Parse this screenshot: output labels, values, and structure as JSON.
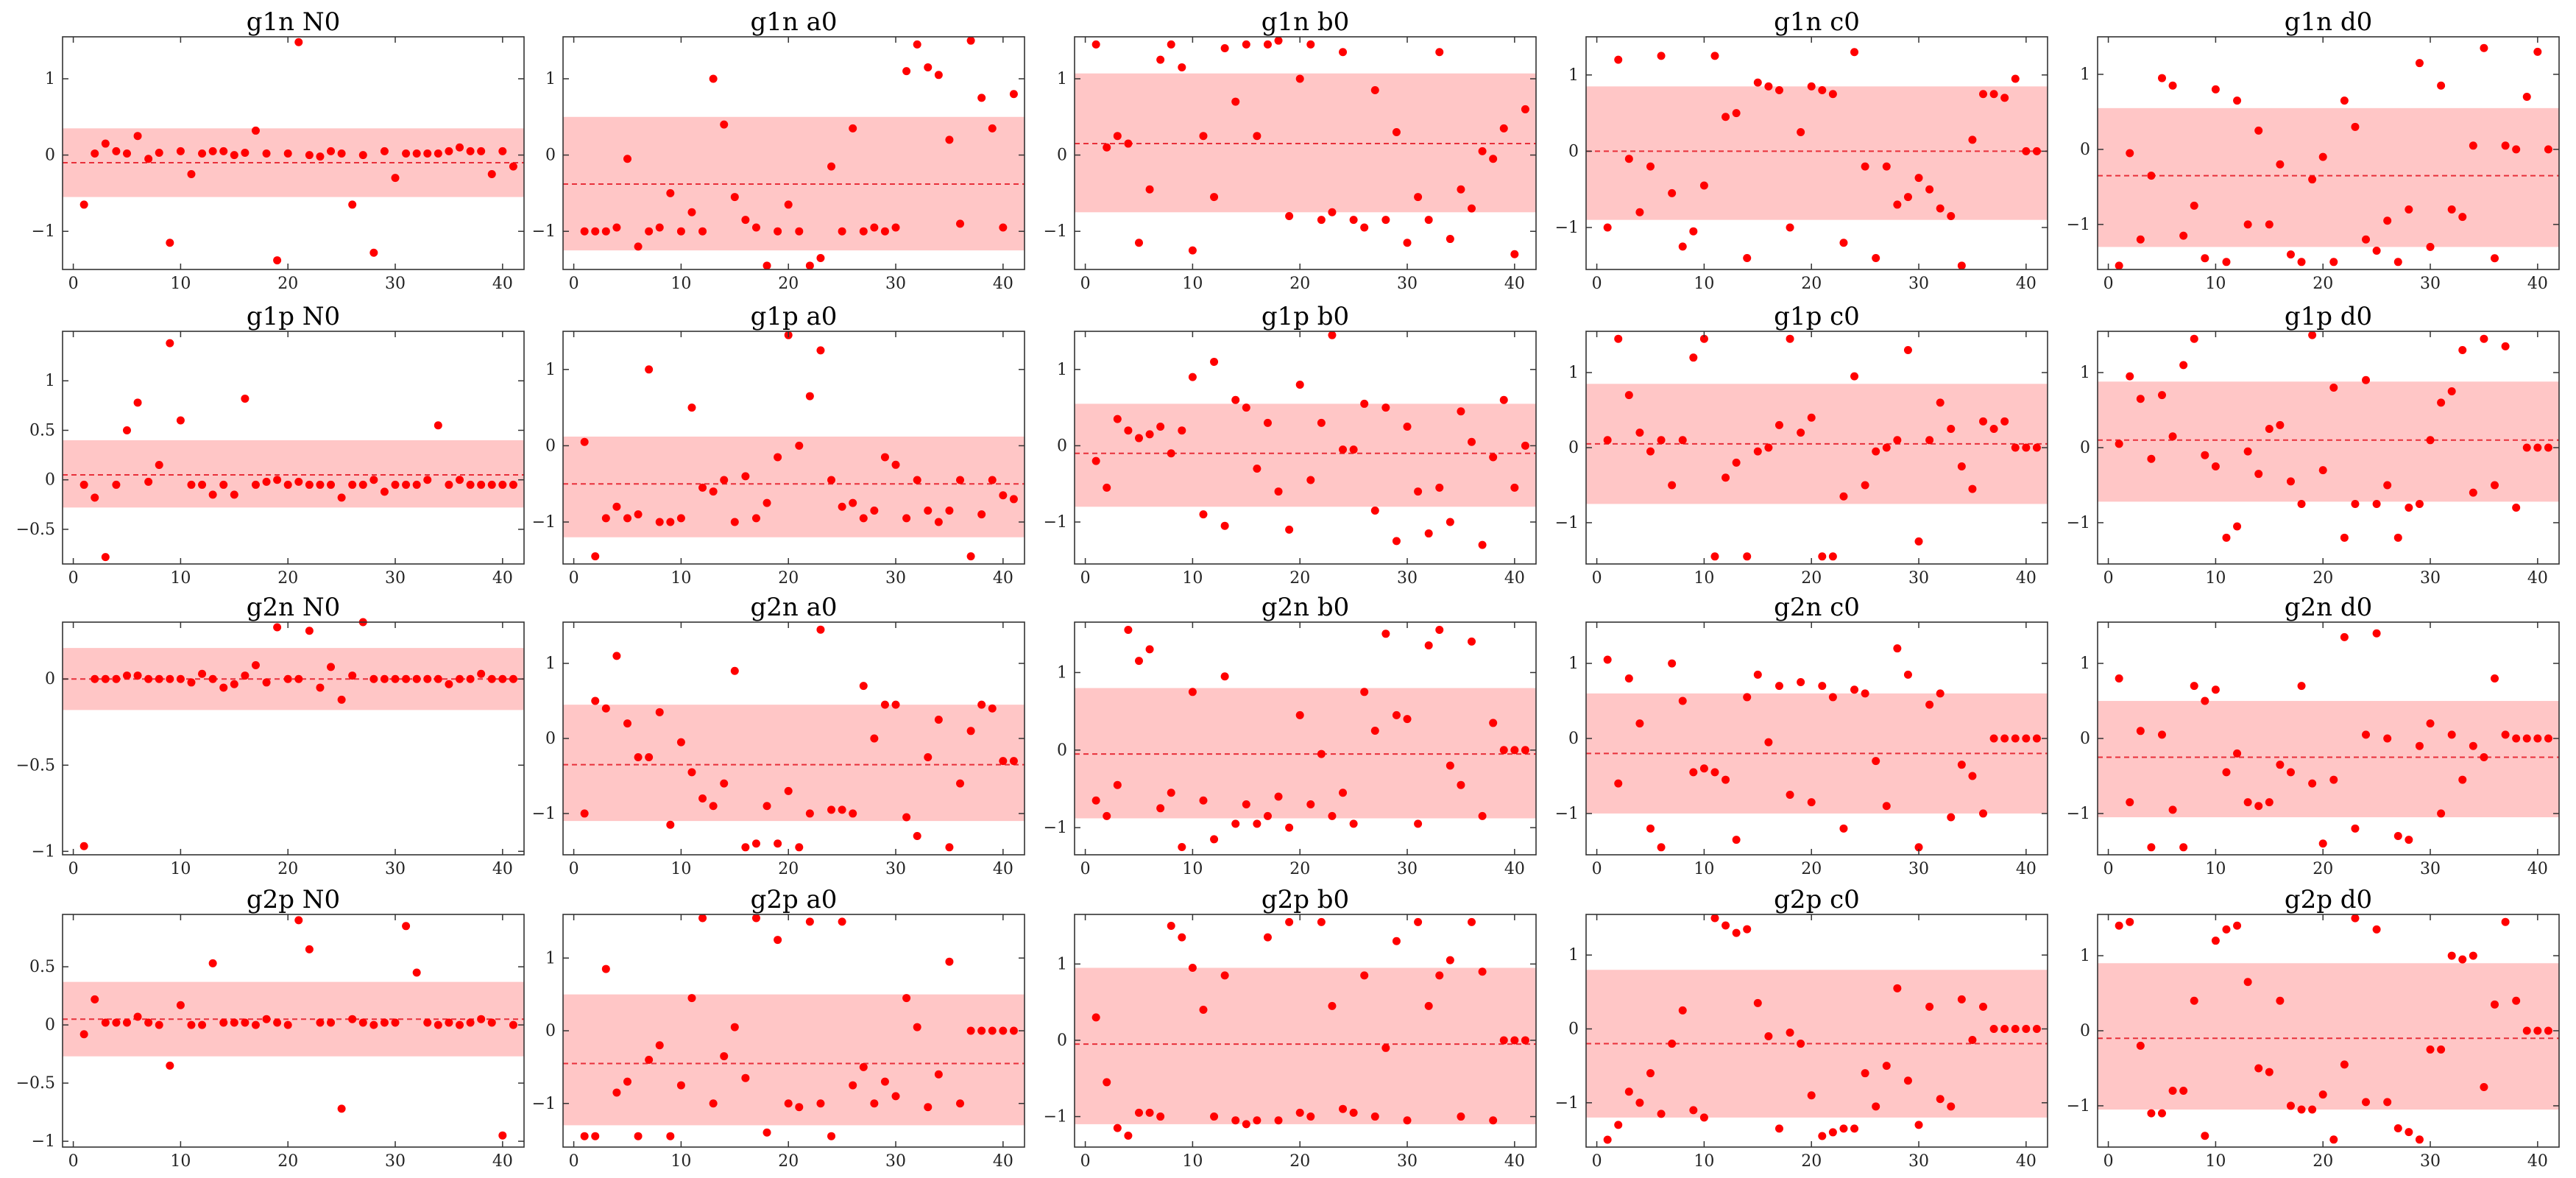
{
  "colors": {
    "point": "#ff0000",
    "band": "#ffb3b3",
    "mean_line": "#e8303a",
    "axes": "#333333"
  },
  "chart_data": [
    {
      "type": "scatter",
      "title": "g1n N0",
      "xlim": [
        -1,
        42
      ],
      "ylim": [
        -1.5,
        1.55
      ],
      "yticks": [
        -1,
        0,
        1
      ],
      "xticks": [
        0,
        10,
        20,
        30,
        40
      ],
      "mean": -0.1,
      "band": [
        -0.55,
        0.35
      ],
      "y": [
        -0.65,
        0.02,
        0.15,
        0.05,
        0.02,
        0.25,
        -0.05,
        0.03,
        -1.15,
        0.05,
        -0.25,
        0.02,
        0.05,
        0.05,
        0.0,
        0.03,
        0.32,
        0.02,
        -1.38,
        0.02,
        1.48,
        0.0,
        -0.02,
        0.05,
        0.02,
        -0.65,
        0.0,
        -1.28,
        0.05,
        -0.3,
        0.02,
        0.02,
        0.02,
        0.02,
        0.05,
        0.1,
        0.05,
        0.05,
        -0.25,
        0.05,
        -0.15
      ]
    },
    {
      "type": "scatter",
      "title": "g1n a0",
      "xlim": [
        -1,
        42
      ],
      "ylim": [
        -1.5,
        1.55
      ],
      "yticks": [
        -1,
        0,
        1
      ],
      "xticks": [
        0,
        10,
        20,
        30,
        40
      ],
      "mean": -0.38,
      "band": [
        -1.25,
        0.5
      ],
      "y": [
        -1.0,
        -1.0,
        -1.0,
        -0.95,
        -0.05,
        -1.2,
        -1.0,
        -0.95,
        -0.5,
        -1.0,
        -0.75,
        -1.0,
        1.0,
        0.4,
        -0.55,
        -0.85,
        -0.95,
        -1.45,
        -1.0,
        -0.65,
        -1.0,
        -1.45,
        -1.35,
        -0.15,
        -1.0,
        0.35,
        -1.0,
        -0.95,
        -1.0,
        -0.95,
        1.1,
        1.45,
        1.15,
        1.05,
        0.2,
        -0.9,
        1.5,
        0.75,
        0.35,
        -0.95,
        0.8
      ]
    },
    {
      "type": "scatter",
      "title": "g1n b0",
      "xlim": [
        -1,
        42
      ],
      "ylim": [
        -1.5,
        1.55
      ],
      "yticks": [
        -1,
        0,
        1
      ],
      "xticks": [
        0,
        10,
        20,
        30,
        40
      ],
      "mean": 0.15,
      "band": [
        -0.75,
        1.07
      ],
      "y": [
        1.45,
        0.1,
        0.25,
        0.15,
        -1.15,
        -0.45,
        1.25,
        1.45,
        1.15,
        -1.25,
        0.25,
        -0.55,
        1.4,
        0.7,
        1.45,
        0.25,
        1.45,
        1.5,
        -0.8,
        1.0,
        1.45,
        -0.85,
        -0.75,
        1.35,
        -0.85,
        -0.95,
        0.85,
        -0.85,
        0.3,
        -1.15,
        -0.55,
        -0.85,
        1.35,
        -1.1,
        -0.45,
        -0.7,
        0.05,
        -0.05,
        0.35,
        -1.3,
        0.6
      ]
    },
    {
      "type": "scatter",
      "title": "g1n c0",
      "xlim": [
        -1,
        42
      ],
      "ylim": [
        -1.55,
        1.5
      ],
      "yticks": [
        -1,
        0,
        1
      ],
      "xticks": [
        0,
        10,
        20,
        30,
        40
      ],
      "mean": 0.0,
      "band": [
        -0.9,
        0.85
      ],
      "y": [
        -1.0,
        1.2,
        -0.1,
        -0.8,
        -0.2,
        1.25,
        -0.55,
        -1.25,
        -1.05,
        -0.45,
        1.25,
        0.45,
        0.5,
        -1.4,
        0.9,
        0.85,
        0.8,
        -1.0,
        0.25,
        0.85,
        0.8,
        0.75,
        -1.2,
        1.3,
        -0.2,
        -1.4,
        -0.2,
        -0.7,
        -0.6,
        -0.35,
        -0.5,
        -0.75,
        -0.85,
        -1.5,
        0.15,
        0.75,
        0.75,
        0.7,
        0.95,
        0.0,
        0.0
      ]
    },
    {
      "type": "scatter",
      "title": "g1n d0",
      "xlim": [
        -1,
        42
      ],
      "ylim": [
        -1.6,
        1.5
      ],
      "yticks": [
        -1,
        0,
        1
      ],
      "xticks": [
        0,
        10,
        20,
        30,
        40
      ],
      "mean": -0.35,
      "band": [
        -1.3,
        0.55
      ],
      "y": [
        -1.55,
        -0.05,
        -1.2,
        -0.35,
        0.95,
        0.85,
        -1.15,
        -0.75,
        -1.45,
        0.8,
        -1.5,
        0.65,
        -1.0,
        0.25,
        -1.0,
        -0.2,
        -1.4,
        -1.5,
        -0.4,
        -0.1,
        -1.5,
        0.65,
        0.3,
        -1.2,
        -1.35,
        -0.95,
        -1.5,
        -0.8,
        1.15,
        -1.3,
        0.85,
        -0.8,
        -0.9,
        0.05,
        1.35,
        -1.45,
        0.05,
        0.0,
        0.7,
        1.3,
        0.0
      ]
    },
    {
      "type": "scatter",
      "title": "g1p N0",
      "xlim": [
        -1,
        42
      ],
      "ylim": [
        -0.85,
        1.5
      ],
      "yticks": [
        -0.5,
        0.0,
        0.5,
        1.0
      ],
      "xticks": [
        0,
        10,
        20,
        30,
        40
      ],
      "mean": 0.05,
      "band": [
        -0.28,
        0.4
      ],
      "y": [
        -0.05,
        -0.18,
        -0.78,
        -0.05,
        0.5,
        0.78,
        -0.02,
        0.15,
        1.38,
        0.6,
        -0.05,
        -0.05,
        -0.15,
        -0.05,
        -0.15,
        0.82,
        -0.05,
        -0.02,
        0.0,
        -0.05,
        -0.02,
        -0.05,
        -0.05,
        -0.05,
        -0.18,
        -0.05,
        -0.05,
        0.0,
        -0.12,
        -0.05,
        -0.05,
        -0.05,
        0.0,
        0.55,
        -0.05,
        0.0,
        -0.05,
        -0.05,
        -0.05,
        -0.05,
        -0.05
      ]
    },
    {
      "type": "scatter",
      "title": "g1p a0",
      "xlim": [
        -1,
        42
      ],
      "ylim": [
        -1.55,
        1.5
      ],
      "yticks": [
        -1,
        0,
        1
      ],
      "xticks": [
        0,
        10,
        20,
        30,
        40
      ],
      "mean": -0.5,
      "band": [
        -1.2,
        0.12
      ],
      "y": [
        0.05,
        -1.45,
        -0.95,
        -0.8,
        -0.95,
        -0.9,
        1.0,
        -1.0,
        -1.0,
        -0.95,
        0.5,
        -0.55,
        -0.6,
        -0.45,
        -1.0,
        -0.4,
        -0.95,
        -0.75,
        -0.15,
        1.45,
        0.0,
        0.65,
        1.25,
        -0.45,
        -0.8,
        -0.75,
        -0.95,
        -0.85,
        -0.15,
        -0.25,
        -0.95,
        -0.45,
        -0.85,
        -1.0,
        -0.85,
        -0.45,
        -1.45,
        -0.9,
        -0.45,
        -0.65,
        -0.7
      ]
    },
    {
      "type": "scatter",
      "title": "g1p b0",
      "xlim": [
        -1,
        42
      ],
      "ylim": [
        -1.55,
        1.5
      ],
      "yticks": [
        -1,
        0,
        1
      ],
      "xticks": [
        0,
        10,
        20,
        30,
        40
      ],
      "mean": -0.1,
      "band": [
        -0.8,
        0.55
      ],
      "y": [
        -0.2,
        -0.55,
        0.35,
        0.2,
        0.1,
        0.15,
        0.25,
        -0.1,
        0.2,
        0.9,
        -0.9,
        1.1,
        -1.05,
        0.6,
        0.5,
        -0.3,
        0.3,
        -0.6,
        -1.1,
        0.8,
        -0.45,
        0.3,
        1.45,
        -0.05,
        -0.05,
        0.55,
        -0.85,
        0.5,
        -1.25,
        0.25,
        -0.6,
        -1.15,
        -0.55,
        -1.0,
        0.45,
        0.05,
        -1.3,
        -0.15,
        0.6,
        -0.55,
        0.0
      ]
    },
    {
      "type": "scatter",
      "title": "g1p c0",
      "xlim": [
        -1,
        42
      ],
      "ylim": [
        -1.55,
        1.55
      ],
      "yticks": [
        -1,
        0,
        1
      ],
      "xticks": [
        0,
        10,
        20,
        30,
        40
      ],
      "mean": 0.05,
      "band": [
        -0.75,
        0.85
      ],
      "y": [
        0.1,
        1.45,
        0.7,
        0.2,
        -0.05,
        0.1,
        -0.5,
        0.1,
        1.2,
        1.45,
        -1.45,
        -0.4,
        -0.2,
        -1.45,
        -0.05,
        0.0,
        0.3,
        1.45,
        0.2,
        0.4,
        -1.45,
        -1.45,
        -0.65,
        0.95,
        -0.5,
        -0.05,
        0.0,
        0.1,
        1.3,
        -1.25,
        0.1,
        0.6,
        0.25,
        -0.25,
        -0.55,
        0.35,
        0.25,
        0.35,
        0.0,
        0.0,
        0.0
      ]
    },
    {
      "type": "scatter",
      "title": "g1p d0",
      "xlim": [
        -1,
        42
      ],
      "ylim": [
        -1.55,
        1.55
      ],
      "yticks": [
        -1,
        0,
        1
      ],
      "xticks": [
        0,
        10,
        20,
        30,
        40
      ],
      "mean": 0.1,
      "band": [
        -0.72,
        0.88
      ],
      "y": [
        0.05,
        0.95,
        0.65,
        -0.15,
        0.7,
        0.15,
        1.1,
        1.45,
        -0.1,
        -0.25,
        -1.2,
        -1.05,
        -0.05,
        -0.35,
        0.25,
        0.3,
        -0.45,
        -0.75,
        1.5,
        -0.3,
        0.8,
        -1.2,
        -0.75,
        0.9,
        -0.75,
        -0.5,
        -1.2,
        -0.8,
        -0.75,
        0.1,
        0.6,
        0.75,
        1.3,
        -0.6,
        1.45,
        -0.5,
        1.35,
        -0.8,
        0.0,
        0.0,
        0.0
      ]
    },
    {
      "type": "scatter",
      "title": "g2n N0",
      "xlim": [
        -1,
        42
      ],
      "ylim": [
        -1.02,
        0.33
      ],
      "yticks": [
        -1.0,
        -0.5,
        0.0
      ],
      "xticks": [
        0,
        10,
        20,
        30,
        40
      ],
      "mean": 0.0,
      "band": [
        -0.18,
        0.18
      ],
      "y": [
        -0.97,
        0.0,
        0.0,
        0.0,
        0.02,
        0.02,
        0.0,
        0.0,
        0.0,
        0.0,
        -0.02,
        0.03,
        0.0,
        -0.05,
        -0.03,
        0.02,
        0.08,
        -0.02,
        0.3,
        0.0,
        0.0,
        0.28,
        -0.05,
        0.07,
        -0.12,
        0.02,
        0.33,
        0.0,
        0.0,
        0.0,
        0.0,
        0.0,
        0.0,
        0.0,
        -0.03,
        0.0,
        0.0,
        0.03,
        0.0,
        0.0,
        0.0
      ]
    },
    {
      "type": "scatter",
      "title": "g2n a0",
      "xlim": [
        -1,
        42
      ],
      "ylim": [
        -1.55,
        1.55
      ],
      "yticks": [
        -1,
        0,
        1
      ],
      "xticks": [
        0,
        10,
        20,
        30,
        40
      ],
      "mean": -0.35,
      "band": [
        -1.1,
        0.45
      ],
      "y": [
        -1.0,
        0.5,
        0.4,
        1.1,
        0.2,
        -0.25,
        -0.25,
        0.35,
        -1.15,
        -0.05,
        -0.45,
        -0.8,
        -0.9,
        -0.6,
        0.9,
        -1.45,
        -1.4,
        -0.9,
        -1.4,
        -0.7,
        -1.45,
        -1.0,
        1.45,
        -0.95,
        -0.95,
        -1.0,
        0.7,
        0.0,
        0.45,
        0.45,
        -1.05,
        -1.3,
        -0.25,
        0.25,
        -1.45,
        -0.6,
        0.1,
        0.45,
        0.4,
        -0.3,
        -0.3
      ]
    },
    {
      "type": "scatter",
      "title": "g2n b0",
      "xlim": [
        -1,
        42
      ],
      "ylim": [
        -1.35,
        1.65
      ],
      "yticks": [
        -1,
        0,
        1
      ],
      "xticks": [
        0,
        10,
        20,
        30,
        40
      ],
      "mean": -0.05,
      "band": [
        -0.88,
        0.8
      ],
      "y": [
        -0.65,
        -0.85,
        -0.45,
        1.55,
        1.15,
        1.3,
        -0.75,
        -0.55,
        -1.25,
        0.75,
        -0.65,
        -1.15,
        0.95,
        -0.95,
        -0.7,
        -0.95,
        -0.85,
        -0.6,
        -1.0,
        0.45,
        -0.7,
        -0.05,
        -0.85,
        -0.55,
        -0.95,
        0.75,
        0.25,
        1.5,
        0.45,
        0.4,
        -0.95,
        1.35,
        1.55,
        -0.2,
        -0.45,
        1.4,
        -0.85,
        0.35,
        0.0,
        0.0,
        0.0
      ]
    },
    {
      "type": "scatter",
      "title": "g2n c0",
      "xlim": [
        -1,
        42
      ],
      "ylim": [
        -1.55,
        1.55
      ],
      "yticks": [
        -1,
        0,
        1
      ],
      "xticks": [
        0,
        10,
        20,
        30,
        40
      ],
      "mean": -0.2,
      "band": [
        -1.0,
        0.6
      ],
      "y": [
        1.05,
        -0.6,
        0.8,
        0.2,
        -1.2,
        -1.45,
        1.0,
        0.5,
        -0.45,
        -0.4,
        -0.45,
        -0.55,
        -1.35,
        0.55,
        0.85,
        -0.05,
        0.7,
        -0.75,
        0.75,
        -0.85,
        0.7,
        0.55,
        -1.2,
        0.65,
        0.6,
        -0.3,
        -0.9,
        1.2,
        0.85,
        -1.45,
        0.45,
        0.6,
        -1.05,
        -0.35,
        -0.5,
        -1.0,
        0.0,
        0.0,
        0.0,
        0.0,
        0.0
      ]
    },
    {
      "type": "scatter",
      "title": "g2n d0",
      "xlim": [
        -1,
        42
      ],
      "ylim": [
        -1.55,
        1.55
      ],
      "yticks": [
        -1,
        0,
        1
      ],
      "xticks": [
        0,
        10,
        20,
        30,
        40
      ],
      "mean": -0.25,
      "band": [
        -1.05,
        0.5
      ],
      "y": [
        0.8,
        -0.85,
        0.1,
        -1.45,
        0.05,
        -0.95,
        -1.45,
        0.7,
        0.5,
        0.65,
        -0.45,
        -0.2,
        -0.85,
        -0.9,
        -0.85,
        -0.35,
        -0.45,
        0.7,
        -0.6,
        -1.4,
        -0.55,
        1.35,
        -1.2,
        0.05,
        1.4,
        0.0,
        -1.3,
        -1.35,
        -0.1,
        0.2,
        -1.0,
        0.05,
        -0.55,
        -0.1,
        -0.25,
        0.8,
        0.05,
        0.0,
        0.0,
        0.0,
        0.0
      ]
    },
    {
      "type": "scatter",
      "title": "g2p N0",
      "xlim": [
        -1,
        42
      ],
      "ylim": [
        -1.05,
        0.95
      ],
      "yticks": [
        -1.0,
        -0.5,
        0.0,
        0.5
      ],
      "xticks": [
        0,
        10,
        20,
        30,
        40
      ],
      "mean": 0.05,
      "band": [
        -0.27,
        0.37
      ],
      "y": [
        -0.08,
        0.22,
        0.02,
        0.02,
        0.02,
        0.07,
        0.02,
        0.0,
        -0.35,
        0.17,
        0.0,
        0.0,
        0.53,
        0.02,
        0.02,
        0.02,
        0.0,
        0.05,
        0.02,
        0.0,
        0.9,
        0.65,
        0.02,
        0.02,
        -0.72,
        0.05,
        0.02,
        0.0,
        0.02,
        0.02,
        0.85,
        0.45,
        0.02,
        0.0,
        0.02,
        0.0,
        0.02,
        0.05,
        0.02,
        -0.95,
        0.0
      ]
    },
    {
      "type": "scatter",
      "title": "g2p a0",
      "xlim": [
        -1,
        42
      ],
      "ylim": [
        -1.6,
        1.6
      ],
      "yticks": [
        -1,
        0,
        1
      ],
      "xticks": [
        0,
        10,
        20,
        30,
        40
      ],
      "mean": -0.45,
      "band": [
        -1.3,
        0.5
      ],
      "y": [
        -1.45,
        -1.45,
        0.85,
        -0.85,
        -0.7,
        -1.45,
        -0.4,
        -0.2,
        -1.45,
        -0.75,
        0.45,
        1.55,
        -1.0,
        -0.35,
        0.05,
        -0.65,
        1.55,
        -1.4,
        1.25,
        -1.0,
        -1.05,
        1.5,
        -1.0,
        -1.45,
        1.5,
        -0.75,
        -0.5,
        -1.0,
        -0.7,
        -0.9,
        0.45,
        0.05,
        -1.05,
        -0.6,
        0.95,
        -1.0,
        0.0,
        0.0,
        0.0,
        0.0,
        0.0
      ]
    },
    {
      "type": "scatter",
      "title": "g2p b0",
      "xlim": [
        -1,
        42
      ],
      "ylim": [
        -1.4,
        1.65
      ],
      "yticks": [
        -1,
        0,
        1
      ],
      "xticks": [
        0,
        10,
        20,
        30,
        40
      ],
      "mean": -0.05,
      "band": [
        -1.1,
        0.95
      ],
      "y": [
        0.3,
        -0.55,
        -1.15,
        -1.25,
        -0.95,
        -0.95,
        -1.0,
        1.5,
        1.35,
        0.95,
        0.4,
        -1.0,
        0.85,
        -1.05,
        -1.1,
        -1.05,
        1.35,
        -1.05,
        1.55,
        -0.95,
        -1.0,
        1.55,
        0.45,
        -0.9,
        -0.95,
        0.85,
        -1.0,
        -0.1,
        1.3,
        -1.05,
        1.55,
        0.45,
        0.85,
        1.05,
        -1.0,
        1.55,
        0.9,
        -1.05,
        0.0,
        0.0,
        0.0
      ]
    },
    {
      "type": "scatter",
      "title": "g2p c0",
      "xlim": [
        -1,
        42
      ],
      "ylim": [
        -1.6,
        1.55
      ],
      "yticks": [
        -1,
        0,
        1
      ],
      "xticks": [
        0,
        10,
        20,
        30,
        40
      ],
      "mean": -0.2,
      "band": [
        -1.2,
        0.8
      ],
      "y": [
        -1.5,
        -1.3,
        -0.85,
        -1.0,
        -0.6,
        -1.15,
        -0.2,
        0.25,
        -1.1,
        -1.2,
        1.5,
        1.4,
        1.3,
        1.35,
        0.35,
        -0.1,
        -1.35,
        -0.05,
        -0.2,
        -0.9,
        -1.45,
        -1.4,
        -1.35,
        -1.35,
        -0.6,
        -1.05,
        -0.5,
        0.55,
        -0.7,
        -1.3,
        0.3,
        -0.95,
        -1.05,
        0.4,
        -0.15,
        0.3,
        0.0,
        0.0,
        0.0,
        0.0,
        0.0
      ]
    },
    {
      "type": "scatter",
      "title": "g2p d0",
      "xlim": [
        -1,
        42
      ],
      "ylim": [
        -1.55,
        1.55
      ],
      "yticks": [
        -1,
        0,
        1
      ],
      "xticks": [
        0,
        10,
        20,
        30,
        40
      ],
      "mean": -0.1,
      "band": [
        -1.05,
        0.9
      ],
      "y": [
        1.4,
        1.45,
        -0.2,
        -1.1,
        -1.1,
        -0.8,
        -0.8,
        0.4,
        -1.4,
        1.2,
        1.35,
        1.4,
        0.65,
        -0.5,
        -0.55,
        0.4,
        -1.0,
        -1.05,
        -1.05,
        -0.85,
        -1.45,
        -0.45,
        1.5,
        -0.95,
        1.35,
        -0.95,
        -1.3,
        -1.35,
        -1.45,
        -0.25,
        -0.25,
        1.0,
        0.95,
        1.0,
        -0.75,
        0.35,
        1.45,
        0.4,
        0.0,
        0.0,
        0.0
      ]
    }
  ]
}
